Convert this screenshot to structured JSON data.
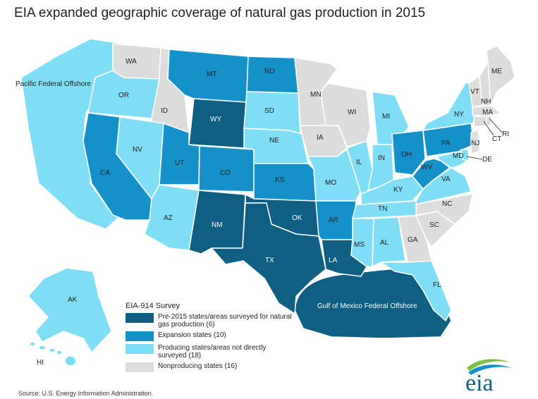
{
  "title": "EIA expanded geographic coverage of natural gas production in 2015",
  "colors": {
    "pre2015": "#0e5f82",
    "expansion": "#1591c9",
    "producing": "#7fddf5",
    "nonproducing": "#dcdcdc"
  },
  "states": {
    "WA": "WA",
    "OR": "OR",
    "CA": "CA",
    "ID": "ID",
    "NV": "NV",
    "MT": "MT",
    "WY": "WY",
    "UT": "UT",
    "AZ": "AZ",
    "CO": "CO",
    "NM": "NM",
    "ND": "ND",
    "SD": "SD",
    "NE": "NE",
    "KS": "KS",
    "OK": "OK",
    "TX": "TX",
    "MN": "MN",
    "IA": "IA",
    "MO": "MO",
    "AR": "AR",
    "LA": "LA",
    "WI": "WI",
    "IL": "IL",
    "MI": "MI",
    "IN": "IN",
    "OH": "OH",
    "KY": "KY",
    "TN": "TN",
    "MS": "MS",
    "AL": "AL",
    "GA": "GA",
    "FL": "FL",
    "SC": "SC",
    "NC": "NC",
    "VA": "VA",
    "WV": "WV",
    "PA": "PA",
    "NY": "NY",
    "VT": "VT",
    "NH": "NH",
    "ME": "ME",
    "MA": "MA",
    "CT": "CT",
    "RI": "RI",
    "NJ": "NJ",
    "MD": "MD",
    "DE": "DE",
    "AK": "AK",
    "HI": "HI"
  },
  "offshore": {
    "pacific": "Pacific Federal Offshore",
    "gulf": "Gulf of Mexico Federal Offshore"
  },
  "legend": {
    "title": "EIA-914 Survey",
    "items": [
      {
        "label": "Pre-2015 states/areas surveyed for natural gas production  (6)",
        "color": "#0e5f82"
      },
      {
        "label": "Expansion states  (10)",
        "color": "#1591c9"
      },
      {
        "label": "Producing states/areas not directly surveyed  (18)",
        "color": "#7fddf5"
      },
      {
        "label": "Nonproducing states  (16)",
        "color": "#dcdcdc"
      }
    ]
  },
  "source": "Source:  U.S. Energy Information Administration.",
  "logo_text": "eia"
}
